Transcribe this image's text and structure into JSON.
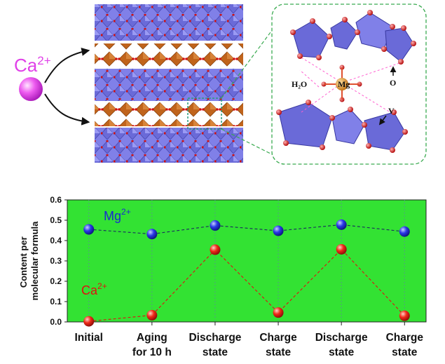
{
  "ion_label": {
    "base": "Ca",
    "sup": "2+"
  },
  "inset": {
    "h2o_label": "H₂O",
    "mg_label": "Mg",
    "o_label": "O",
    "v_label": "V"
  },
  "chart_data": {
    "type": "scatter",
    "title": "",
    "xlabel": "",
    "ylabel": "Content per molecular formula",
    "ylabel_lines": [
      "Content per",
      "molecular formula"
    ],
    "ylim": [
      0.0,
      0.6
    ],
    "y_ticks": [
      "0.0",
      "0.1",
      "0.2",
      "0.3",
      "0.4",
      "0.5",
      "0.6"
    ],
    "categories": [
      [
        "Initial"
      ],
      [
        "Aging",
        "for 10 h"
      ],
      [
        "Discharge",
        "state"
      ],
      [
        "Charge",
        "state"
      ],
      [
        "Discharge",
        "state"
      ],
      [
        "Charge",
        "state"
      ]
    ],
    "series": [
      {
        "name": "Mg",
        "name_sup": "2+",
        "values": [
          0.455,
          0.432,
          0.474,
          0.448,
          0.478,
          0.444
        ],
        "color": "#1a2ad0",
        "line_style": "dashed"
      },
      {
        "name": "Ca",
        "name_sup": "2+",
        "values": [
          0.003,
          0.033,
          0.355,
          0.046,
          0.357,
          0.03
        ],
        "color": "#e01010",
        "line_style": "dashed"
      }
    ],
    "background_color": "#33e233",
    "grid": "vertical dotted",
    "legend_placement": "inline labels"
  }
}
